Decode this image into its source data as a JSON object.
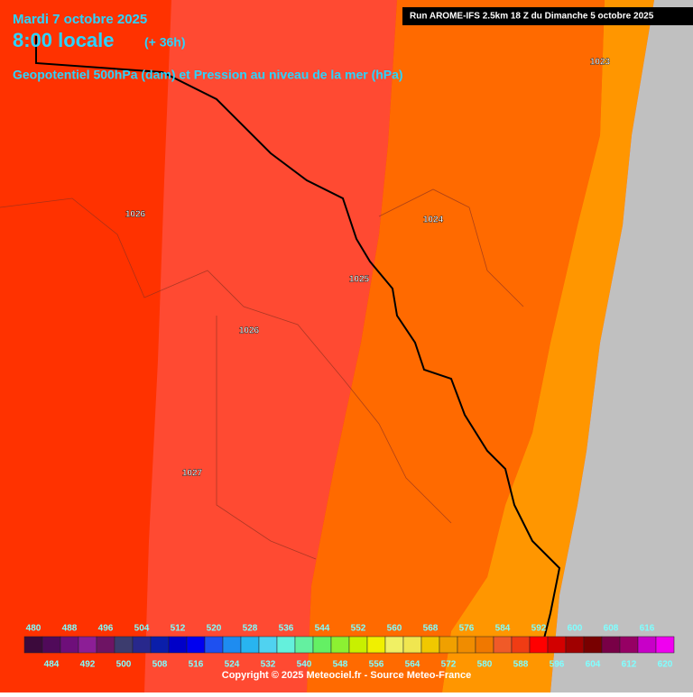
{
  "header": {
    "date": "Mardi 7 octobre 2025",
    "time": "8:00 locale",
    "lead": "(+ 36h)",
    "subtitle": "Geopotentiel 500hPa (dam) et Pression au niveau de la mer (hPa)",
    "run": "Run AROME-IFS 2.5km 18 Z du Dimanche 5 octobre 2025"
  },
  "pressure_labels": [
    "1023",
    "1026",
    "1024",
    "1025",
    "1026",
    "1027"
  ],
  "scale": {
    "values": [
      480,
      484,
      488,
      492,
      496,
      500,
      504,
      508,
      512,
      516,
      520,
      524,
      528,
      532,
      536,
      540,
      544,
      548,
      552,
      556,
      560,
      564,
      568,
      572,
      576,
      580,
      584,
      588,
      592,
      596,
      600,
      604,
      608,
      612,
      616,
      620
    ],
    "colors": [
      "#3c0a3c",
      "#500a5a",
      "#6e0f7a",
      "#8c1e96",
      "#6e1464",
      "#3c3c6e",
      "#28288c",
      "#0a1eaa",
      "#0000c8",
      "#0000f0",
      "#1e50f0",
      "#1e8cf0",
      "#28b4f0",
      "#50d2f0",
      "#64f0dc",
      "#64f0a0",
      "#64f064",
      "#8cf032",
      "#c8f000",
      "#f0f000",
      "#f0f064",
      "#f0e650",
      "#f0c800",
      "#f0a000",
      "#f08c00",
      "#f07800",
      "#f05a28",
      "#f03c14",
      "#ff0000",
      "#d20000",
      "#a00000",
      "#780000",
      "#780046",
      "#960064",
      "#c800c8",
      "#f000f0"
    ]
  },
  "footer": "Copyright © 2025 Meteociel.fr - Source Meteo-France"
}
